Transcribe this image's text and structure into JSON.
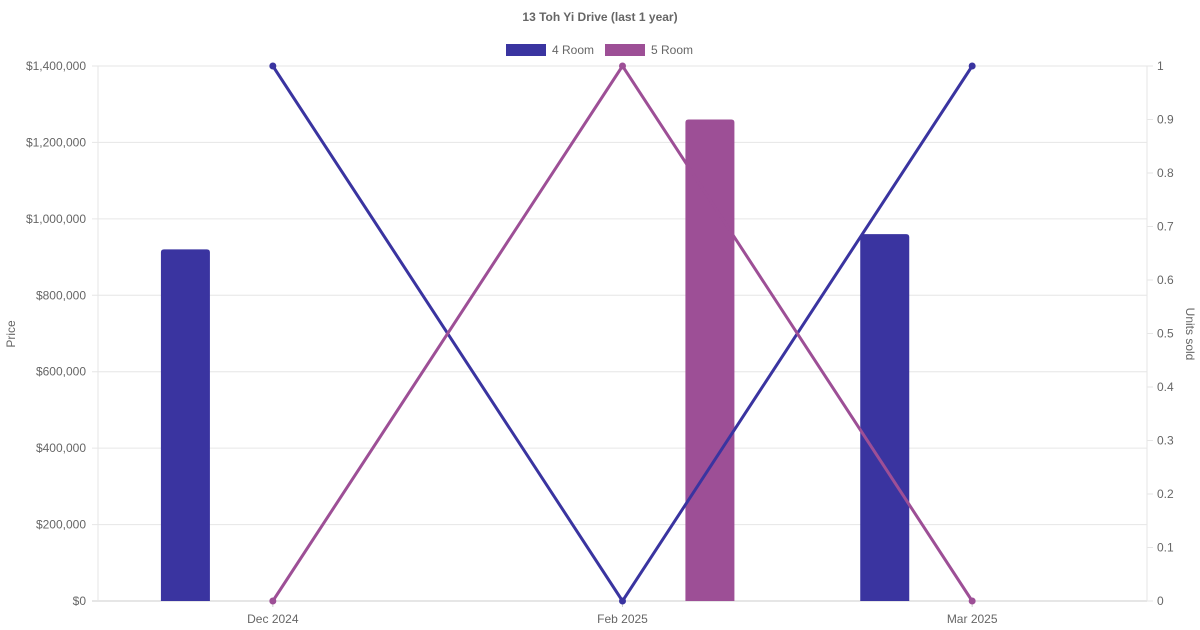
{
  "chart_data": {
    "type": "bar",
    "title": "13 Toh Yi Drive (last 1 year)",
    "categories": [
      "Dec 2024",
      "Feb 2025",
      "Mar 2025"
    ],
    "series": [
      {
        "name": "4 Room",
        "color": "#3a34a0",
        "bar_values": [
          920000,
          null,
          960000
        ],
        "line_values": [
          1,
          0,
          1
        ]
      },
      {
        "name": "5 Room",
        "color": "#9d4f96",
        "bar_values": [
          null,
          1260000,
          null
        ],
        "line_values": [
          0,
          1,
          0
        ]
      }
    ],
    "y_left": {
      "label": "Price",
      "ylim": [
        0,
        1400000
      ],
      "ticks": [
        "$0",
        "$200,000",
        "$400,000",
        "$600,000",
        "$800,000",
        "$1,000,000",
        "$1,200,000",
        "$1,400,000"
      ]
    },
    "y_right": {
      "label": "Units sold",
      "ylim": [
        0,
        1
      ],
      "ticks": [
        "0",
        "0.1",
        "0.2",
        "0.3",
        "0.4",
        "0.5",
        "0.6",
        "0.7",
        "0.8",
        "0.9",
        "1"
      ]
    },
    "grid": true,
    "legend_position": "top-center"
  }
}
